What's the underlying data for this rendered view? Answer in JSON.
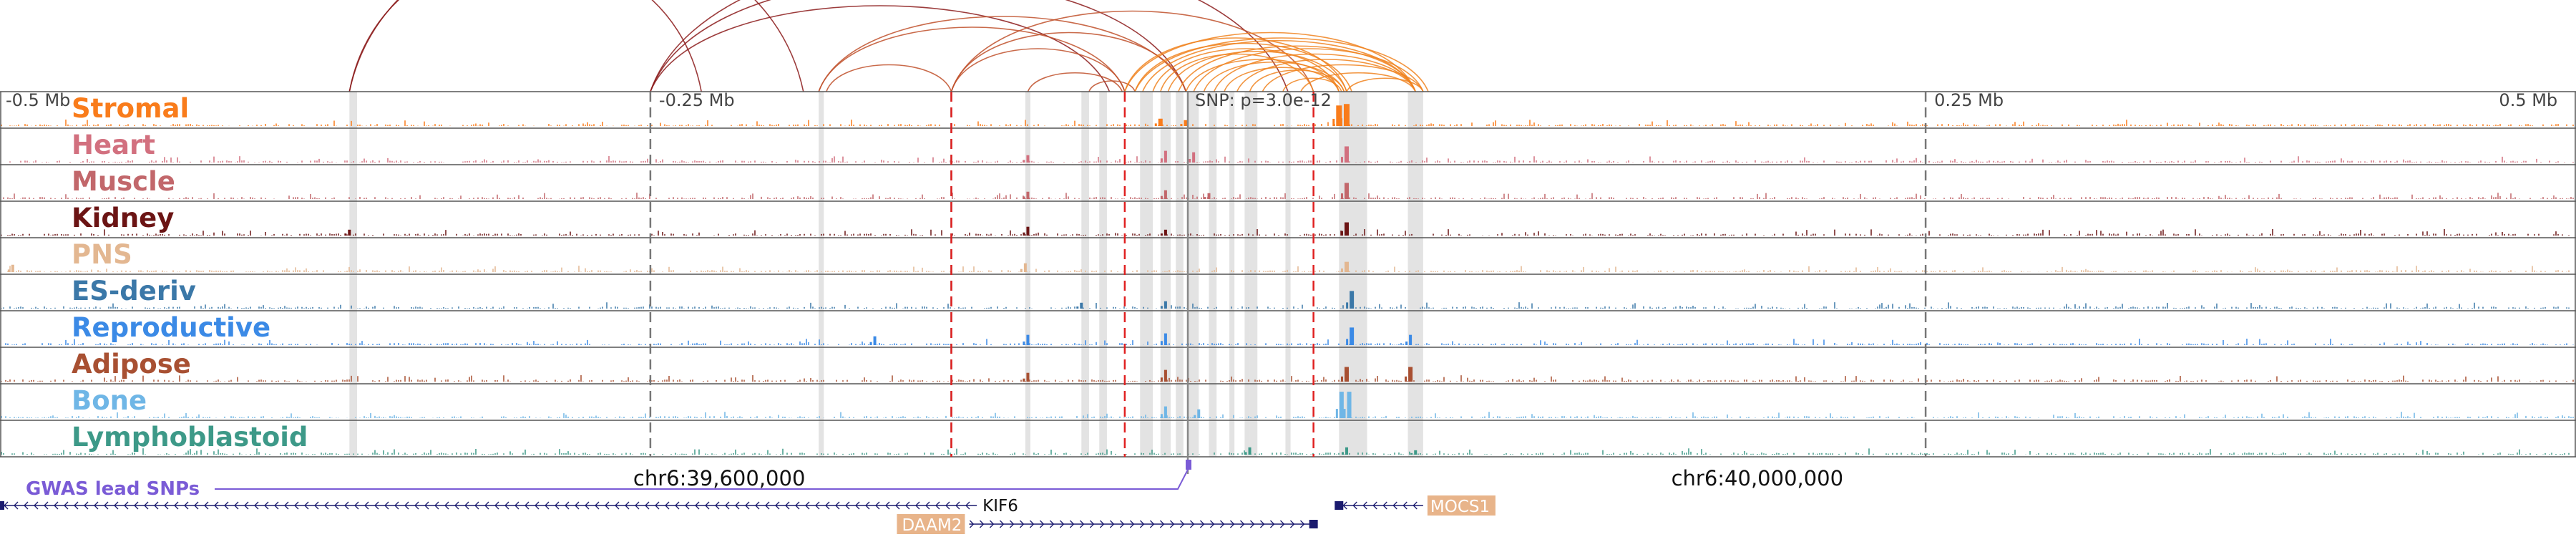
{
  "chart_data": {
    "type": "area",
    "region": {
      "chrom": "chr6",
      "start": 39435000,
      "end": 40445000
    },
    "snp": {
      "position": 39940000,
      "label": "SNP: p=3.0e-12"
    },
    "offset_ticks": [
      {
        "pos": 39440000,
        "label": "-0.5 Mb"
      },
      {
        "pos": 39690000,
        "label": "-0.25 Mb"
      },
      {
        "pos": 40190000,
        "label": "0.25 Mb"
      },
      {
        "pos": 40440000,
        "label": "0.5 Mb"
      }
    ],
    "coord_labels": [
      {
        "pos": 39717000,
        "label": "chr6:39,600,000"
      },
      {
        "pos": 40124000,
        "label": "chr6:40,000,000"
      }
    ],
    "gwas_label": "GWAS lead SNPs",
    "red_lines": [
      39808000,
      39876000,
      39950000
    ],
    "gray_lines": [
      39690000,
      39808000,
      40190000
    ],
    "highlights": [
      [
        39572000,
        39575000
      ],
      [
        39756000,
        39758000
      ],
      [
        39837000,
        39839000
      ],
      [
        39859000,
        39862000
      ],
      [
        39866000,
        39869000
      ],
      [
        39882000,
        39887000
      ],
      [
        39890000,
        39894000
      ],
      [
        39896000,
        39899000
      ],
      [
        39901000,
        39905000
      ],
      [
        39909000,
        39912000
      ],
      [
        39917000,
        39919000
      ],
      [
        39923000,
        39925000
      ],
      [
        39925000,
        39928000
      ],
      [
        39939000,
        39941000
      ],
      [
        39960000,
        39971000
      ],
      [
        39987000,
        39993000
      ]
    ],
    "tracks": [
      {
        "name": "Stromal",
        "color": "#f97c1b"
      },
      {
        "name": "Heart",
        "color": "#d2707f"
      },
      {
        "name": "Muscle",
        "color": "#c2676b"
      },
      {
        "name": "Kidney",
        "color": "#6b1414"
      },
      {
        "name": "PNS",
        "color": "#e3b791"
      },
      {
        "name": "ES-deriv",
        "color": "#3b78a8"
      },
      {
        "name": "Reproductive",
        "color": "#3b8ae6"
      },
      {
        "name": "Adipose",
        "color": "#a85032"
      },
      {
        "name": "Bone",
        "color": "#6fb6e6"
      },
      {
        "name": "Lymphoblastoid",
        "color": "#3d9988"
      }
    ],
    "track_peaks": [
      [
        [
          39960000,
          0.7,
          4
        ],
        [
          39963000,
          0.75,
          4
        ],
        [
          39890000,
          0.25,
          3
        ],
        [
          39900000,
          0.2,
          3
        ]
      ],
      [
        [
          39963000,
          0.55,
          3
        ],
        [
          39892000,
          0.4,
          2
        ],
        [
          39903000,
          0.35,
          2
        ],
        [
          39838000,
          0.25,
          2
        ]
      ],
      [
        [
          39963000,
          0.55,
          3
        ],
        [
          39892000,
          0.3,
          2
        ],
        [
          39838000,
          0.25,
          2
        ],
        [
          39909000,
          0.2,
          2
        ]
      ],
      [
        [
          39963000,
          0.45,
          3
        ],
        [
          39838000,
          0.3,
          2
        ],
        [
          39572000,
          0.2,
          2
        ],
        [
          39892000,
          0.2,
          2
        ]
      ],
      [
        [
          39963000,
          0.35,
          3
        ],
        [
          39837000,
          0.3,
          2
        ],
        [
          39440000,
          0.25,
          2
        ]
      ],
      [
        [
          39965000,
          0.6,
          3
        ],
        [
          39892000,
          0.25,
          2
        ],
        [
          39859000,
          0.2,
          2
        ]
      ],
      [
        [
          39965000,
          0.6,
          3
        ],
        [
          39892000,
          0.4,
          2
        ],
        [
          39838000,
          0.35,
          2
        ],
        [
          39988000,
          0.35,
          2
        ],
        [
          39778000,
          0.3,
          2
        ]
      ],
      [
        [
          39963000,
          0.5,
          3
        ],
        [
          39988000,
          0.5,
          3
        ],
        [
          39892000,
          0.4,
          2
        ],
        [
          39838000,
          0.3,
          2
        ]
      ],
      [
        [
          39961000,
          0.9,
          3
        ],
        [
          39964000,
          0.9,
          3
        ],
        [
          39892000,
          0.4,
          2
        ],
        [
          39905000,
          0.3,
          2
        ]
      ],
      [
        [
          39925000,
          0.25,
          2
        ],
        [
          39963000,
          0.25,
          2
        ],
        [
          39990000,
          0.15,
          2
        ]
      ]
    ],
    "arc_groups": [
      {
        "color": "#8b1a1a",
        "arcs": [
          [
            39572000,
            39710000,
            260
          ],
          [
            39572000,
            39750000,
            300
          ],
          [
            39690000,
            39900000,
            210
          ],
          [
            39690000,
            39870000,
            160
          ],
          [
            39690000,
            39940000,
            260
          ]
        ]
      },
      {
        "color": "#c0502a",
        "arcs": [
          [
            39756000,
            39876000,
            120
          ],
          [
            39756000,
            39900000,
            140
          ],
          [
            39808000,
            39876000,
            80
          ],
          [
            39808000,
            39950000,
            150
          ],
          [
            39808000,
            39900000,
            110
          ],
          [
            39759000,
            39808000,
            50
          ],
          [
            39838000,
            39875000,
            35
          ],
          [
            39862000,
            39880000,
            20
          ]
        ]
      },
      {
        "color": "#f0821e",
        "arcs": [
          [
            39876000,
            39990000,
            110
          ],
          [
            39876000,
            39963000,
            100
          ],
          [
            39880000,
            39965000,
            90
          ],
          [
            39883000,
            39990000,
            95
          ],
          [
            39887000,
            39960000,
            80
          ],
          [
            39890000,
            39950000,
            70
          ],
          [
            39893000,
            39963000,
            75
          ],
          [
            39897000,
            39990000,
            85
          ],
          [
            39900000,
            39960000,
            60
          ],
          [
            39903000,
            39993000,
            80
          ],
          [
            39907000,
            39962000,
            55
          ],
          [
            39911000,
            39990000,
            70
          ],
          [
            39915000,
            39960000,
            45
          ],
          [
            39920000,
            39990000,
            60
          ],
          [
            39925000,
            39962000,
            40
          ],
          [
            39930000,
            39993000,
            50
          ],
          [
            39938000,
            39961000,
            25
          ],
          [
            39945000,
            39990000,
            35
          ],
          [
            39963000,
            39993000,
            25
          ],
          [
            39880000,
            39995000,
            100
          ]
        ]
      }
    ],
    "genes": [
      {
        "name": "KIF6",
        "start": 39435000,
        "end": 39818000,
        "strand": "-",
        "row": 0,
        "label_style": "plain"
      },
      {
        "name": "DAAM2",
        "start": 39815000,
        "end": 39950000,
        "strand": "+",
        "row": 1,
        "label_style": "boxed"
      },
      {
        "name": "MOCS1",
        "start": 39960000,
        "end": 39993000,
        "strand": "-",
        "row": 0,
        "label_style": "boxed"
      }
    ]
  }
}
